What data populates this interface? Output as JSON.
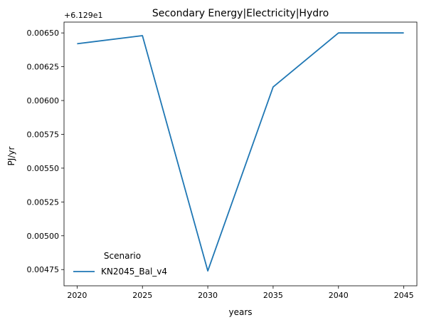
{
  "chart_data": {
    "type": "line",
    "title": "Secondary Energy|Electricity|Hydro",
    "xlabel": "years",
    "ylabel": "PJ/yr",
    "offset_text": "+6.129e1",
    "x": [
      2020,
      2025,
      2030,
      2035,
      2040,
      2045
    ],
    "x_ticks": [
      "2020",
      "2025",
      "2030",
      "2035",
      "2040",
      "2045"
    ],
    "y_ticks": [
      "0.00475",
      "0.00500",
      "0.00525",
      "0.00550",
      "0.00575",
      "0.00600",
      "0.00625",
      "0.00650"
    ],
    "y_tick_values": [
      0.00475,
      0.005,
      0.00525,
      0.0055,
      0.00575,
      0.006,
      0.00625,
      0.0065
    ],
    "xlim": [
      2019,
      2046
    ],
    "ylim": [
      0.00463,
      0.00658
    ],
    "grid": false,
    "legend": {
      "title": "Scenario",
      "placement": "lower-left"
    },
    "series": [
      {
        "name": "KN2045_Bal_v4",
        "color": "#1f77b4",
        "values": [
          0.00642,
          0.00648,
          0.00474,
          0.0061,
          0.0065,
          0.0065
        ]
      }
    ]
  }
}
